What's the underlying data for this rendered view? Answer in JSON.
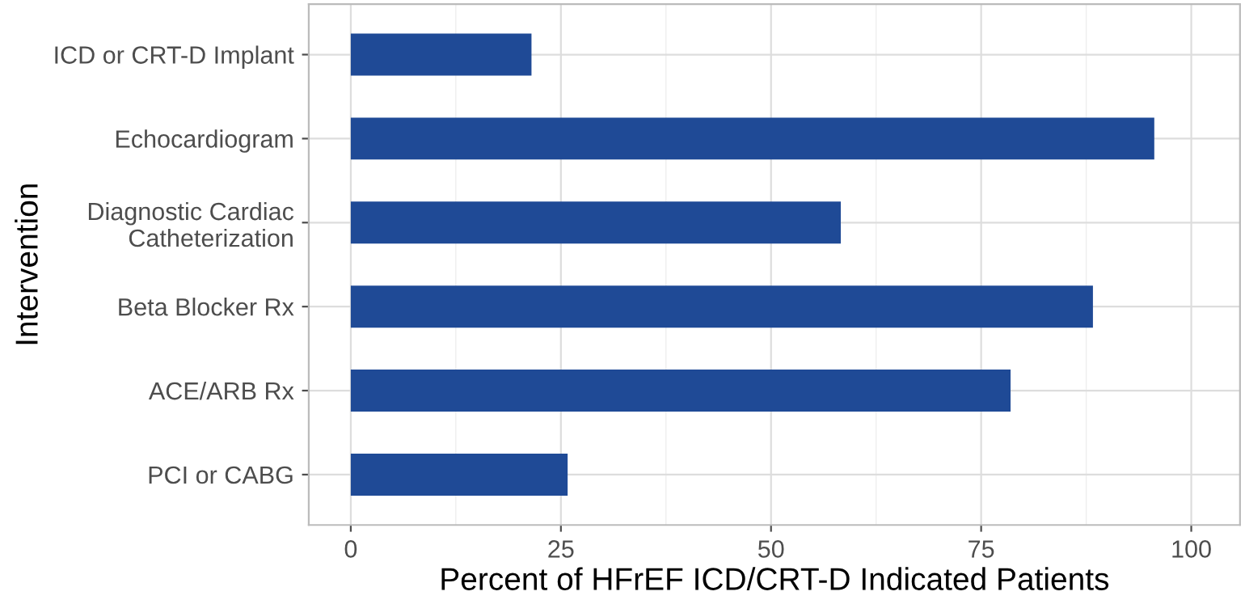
{
  "chart_data": {
    "type": "bar",
    "orientation": "horizontal",
    "categories": [
      "ICD or CRT-D Implant",
      "Echocardiogram",
      "Diagnostic Cardiac\nCatheterization",
      "Beta Blocker Rx",
      "ACE/ARB Rx",
      "PCI or CABG"
    ],
    "values": [
      21.5,
      95.6,
      58.3,
      88.3,
      78.5,
      25.8
    ],
    "color": "#1f4a96",
    "xlabel": "Percent of HFrEF ICD/CRT-D Indicated Patients",
    "ylabel": "Intervention",
    "xlim": [
      -5,
      105.8
    ],
    "xticks": [
      0,
      25,
      50,
      75,
      100
    ],
    "grid": true
  }
}
